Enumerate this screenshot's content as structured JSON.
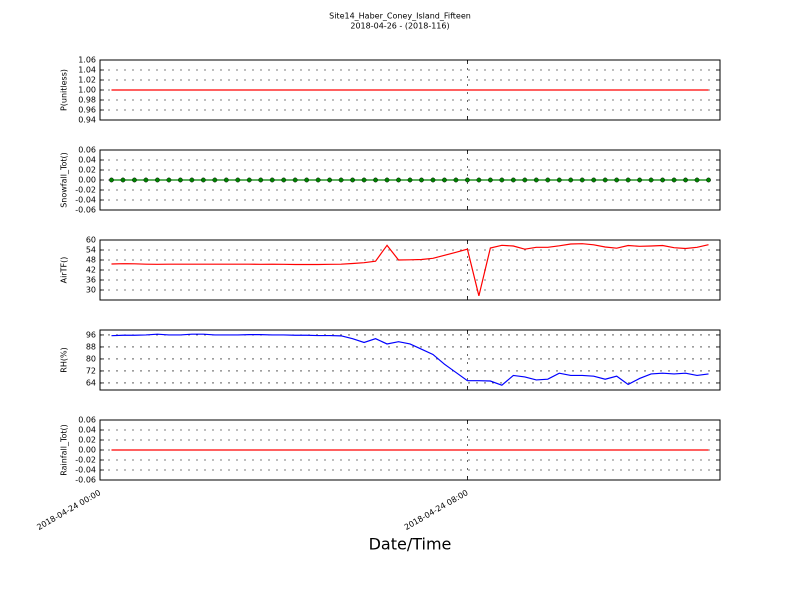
{
  "title": "Site14_Haber_Coney_Island_Fifteen",
  "subtitle": "2018-04-26 - (2018-116)",
  "xlabel": "Date/Time",
  "chart_data": [
    {
      "type": "line",
      "ylabel": "P(unitless)",
      "color": "#ff0000",
      "marker": false,
      "grid": true,
      "x": [
        "2018-04-24 00:15",
        "2018-04-24 00:30",
        "2018-04-24 00:45",
        "2018-04-24 01:00",
        "2018-04-24 01:15",
        "2018-04-24 01:30",
        "2018-04-24 01:45",
        "2018-04-24 02:00",
        "2018-04-24 02:15",
        "2018-04-24 02:30",
        "2018-04-24 02:45",
        "2018-04-24 03:00",
        "2018-04-24 03:15",
        "2018-04-24 03:30",
        "2018-04-24 03:45",
        "2018-04-24 04:00",
        "2018-04-24 04:15",
        "2018-04-24 04:30",
        "2018-04-24 04:45",
        "2018-04-24 05:00",
        "2018-04-24 05:15",
        "2018-04-24 05:30",
        "2018-04-24 05:45",
        "2018-04-24 06:00",
        "2018-04-24 06:15",
        "2018-04-24 06:30",
        "2018-04-24 06:45",
        "2018-04-24 07:00",
        "2018-04-24 07:15",
        "2018-04-24 07:30",
        "2018-04-24 07:45",
        "2018-04-24 08:00",
        "2018-04-24 08:15",
        "2018-04-24 08:30",
        "2018-04-24 08:45",
        "2018-04-24 09:00",
        "2018-04-24 09:15",
        "2018-04-24 09:30",
        "2018-04-24 09:45",
        "2018-04-24 10:00",
        "2018-04-24 10:15",
        "2018-04-24 10:30",
        "2018-04-24 10:45",
        "2018-04-24 11:00",
        "2018-04-24 11:15",
        "2018-04-24 11:30",
        "2018-04-24 11:45",
        "2018-04-24 12:00",
        "2018-04-24 12:15",
        "2018-04-24 12:30",
        "2018-04-24 12:45",
        "2018-04-24 13:00",
        "2018-04-24 13:15"
      ],
      "values": [
        1,
        1,
        1,
        1,
        1,
        1,
        1,
        1,
        1,
        1,
        1,
        1,
        1,
        1,
        1,
        1,
        1,
        1,
        1,
        1,
        1,
        1,
        1,
        1,
        1,
        1,
        1,
        1,
        1,
        1,
        1,
        1,
        1,
        1,
        1,
        1,
        1,
        1,
        1,
        1,
        1,
        1,
        1,
        1,
        1,
        1,
        1,
        1,
        1,
        1,
        1,
        1,
        1
      ],
      "xlim": [
        "2018-04-24 00:00",
        "2018-04-24 13:30"
      ],
      "ylim": [
        0.94,
        1.06
      ],
      "yticks": [
        0.94,
        0.96,
        0.98,
        {
          "value": 1,
          "label": "1.00"
        },
        1.02,
        1.04,
        1.06
      ]
    },
    {
      "type": "line",
      "ylabel": "Snowfall_Tot()",
      "color": "#008000",
      "marker": true,
      "grid": true,
      "x": [
        "2018-04-24 00:15",
        "2018-04-24 00:30",
        "2018-04-24 00:45",
        "2018-04-24 01:00",
        "2018-04-24 01:15",
        "2018-04-24 01:30",
        "2018-04-24 01:45",
        "2018-04-24 02:00",
        "2018-04-24 02:15",
        "2018-04-24 02:30",
        "2018-04-24 02:45",
        "2018-04-24 03:00",
        "2018-04-24 03:15",
        "2018-04-24 03:30",
        "2018-04-24 03:45",
        "2018-04-24 04:00",
        "2018-04-24 04:15",
        "2018-04-24 04:30",
        "2018-04-24 04:45",
        "2018-04-24 05:00",
        "2018-04-24 05:15",
        "2018-04-24 05:30",
        "2018-04-24 05:45",
        "2018-04-24 06:00",
        "2018-04-24 06:15",
        "2018-04-24 06:30",
        "2018-04-24 06:45",
        "2018-04-24 07:00",
        "2018-04-24 07:15",
        "2018-04-24 07:30",
        "2018-04-24 07:45",
        "2018-04-24 08:00",
        "2018-04-24 08:15",
        "2018-04-24 08:30",
        "2018-04-24 08:45",
        "2018-04-24 09:00",
        "2018-04-24 09:15",
        "2018-04-24 09:30",
        "2018-04-24 09:45",
        "2018-04-24 10:00",
        "2018-04-24 10:15",
        "2018-04-24 10:30",
        "2018-04-24 10:45",
        "2018-04-24 11:00",
        "2018-04-24 11:15",
        "2018-04-24 11:30",
        "2018-04-24 11:45",
        "2018-04-24 12:00",
        "2018-04-24 12:15",
        "2018-04-24 12:30",
        "2018-04-24 12:45",
        "2018-04-24 13:00",
        "2018-04-24 13:15"
      ],
      "values": [
        0,
        0,
        0,
        0,
        0,
        0,
        0,
        0,
        0,
        0,
        0,
        0,
        0,
        0,
        0,
        0,
        0,
        0,
        0,
        0,
        0,
        0,
        0,
        0,
        0,
        0,
        0,
        0,
        0,
        0,
        0,
        0,
        0,
        0,
        0,
        0,
        0,
        0,
        0,
        0,
        0,
        0,
        0,
        0,
        0,
        0,
        0,
        0,
        0,
        0,
        0,
        0,
        0
      ],
      "xlim": [
        "2018-04-24 00:00",
        "2018-04-24 13:30"
      ],
      "ylim": [
        -0.06,
        0.06
      ],
      "yticks": [
        -0.06,
        -0.04,
        -0.02,
        {
          "value": 0,
          "label": "0.00"
        },
        0.02,
        0.04,
        0.06
      ]
    },
    {
      "type": "line",
      "ylabel": "AirTF()",
      "color": "#ff0000",
      "marker": false,
      "grid": true,
      "x": [
        "2018-04-24 00:15",
        "2018-04-24 00:30",
        "2018-04-24 00:45",
        "2018-04-24 01:00",
        "2018-04-24 01:15",
        "2018-04-24 01:30",
        "2018-04-24 01:45",
        "2018-04-24 02:00",
        "2018-04-24 02:15",
        "2018-04-24 02:30",
        "2018-04-24 02:45",
        "2018-04-24 03:00",
        "2018-04-24 03:15",
        "2018-04-24 03:30",
        "2018-04-24 03:45",
        "2018-04-24 04:00",
        "2018-04-24 04:15",
        "2018-04-24 04:30",
        "2018-04-24 04:45",
        "2018-04-24 05:00",
        "2018-04-24 05:15",
        "2018-04-24 05:30",
        "2018-04-24 05:45",
        "2018-04-24 06:00",
        "2018-04-24 06:15",
        "2018-04-24 06:30",
        "2018-04-24 06:45",
        "2018-04-24 07:00",
        "2018-04-24 07:15",
        "2018-04-24 07:30",
        "2018-04-24 07:45",
        "2018-04-24 08:00",
        "2018-04-24 08:15",
        "2018-04-24 08:30",
        "2018-04-24 08:45",
        "2018-04-24 09:00",
        "2018-04-24 09:15",
        "2018-04-24 09:30",
        "2018-04-24 09:45",
        "2018-04-24 10:00",
        "2018-04-24 10:15",
        "2018-04-24 10:30",
        "2018-04-24 10:45",
        "2018-04-24 11:00",
        "2018-04-24 11:15",
        "2018-04-24 11:30",
        "2018-04-24 11:45",
        "2018-04-24 12:00",
        "2018-04-24 12:15",
        "2018-04-24 12:30",
        "2018-04-24 12:45",
        "2018-04-24 13:00",
        "2018-04-24 13:15"
      ],
      "values": [
        45.6,
        45.8,
        45.7,
        45.5,
        45.4,
        45.5,
        45.5,
        45.5,
        45.5,
        45.5,
        45.5,
        45.5,
        45.5,
        45.4,
        45.5,
        45.4,
        45.3,
        45.3,
        45.3,
        45.4,
        45.5,
        45.9,
        46.4,
        47.3,
        56.8,
        48.0,
        48.1,
        48.3,
        49.0,
        50.8,
        52.6,
        54.5,
        26.5,
        55.2,
        56.8,
        56.4,
        54.5,
        55.6,
        55.6,
        56.5,
        57.6,
        57.8,
        57.1,
        55.8,
        55.1,
        56.7,
        56.2,
        56.4,
        56.7,
        55.4,
        54.9,
        55.6,
        57.2
      ],
      "xlim": [
        "2018-04-24 00:00",
        "2018-04-24 13:30"
      ],
      "ylim": [
        24,
        60
      ],
      "yticks": [
        30,
        36,
        42,
        48,
        54,
        60
      ]
    },
    {
      "type": "line",
      "ylabel": "RH(%)",
      "color": "#0000ff",
      "marker": false,
      "grid": true,
      "x": [
        "2018-04-24 00:15",
        "2018-04-24 00:30",
        "2018-04-24 00:45",
        "2018-04-24 01:00",
        "2018-04-24 01:15",
        "2018-04-24 01:30",
        "2018-04-24 01:45",
        "2018-04-24 02:00",
        "2018-04-24 02:15",
        "2018-04-24 02:30",
        "2018-04-24 02:45",
        "2018-04-24 03:00",
        "2018-04-24 03:15",
        "2018-04-24 03:30",
        "2018-04-24 03:45",
        "2018-04-24 04:00",
        "2018-04-24 04:15",
        "2018-04-24 04:30",
        "2018-04-24 04:45",
        "2018-04-24 05:00",
        "2018-04-24 05:15",
        "2018-04-24 05:30",
        "2018-04-24 05:45",
        "2018-04-24 06:00",
        "2018-04-24 06:15",
        "2018-04-24 06:30",
        "2018-04-24 06:45",
        "2018-04-24 07:00",
        "2018-04-24 07:15",
        "2018-04-24 07:30",
        "2018-04-24 07:45",
        "2018-04-24 08:00",
        "2018-04-24 08:15",
        "2018-04-24 08:30",
        "2018-04-24 08:45",
        "2018-04-24 09:00",
        "2018-04-24 09:15",
        "2018-04-24 09:30",
        "2018-04-24 09:45",
        "2018-04-24 10:00",
        "2018-04-24 10:15",
        "2018-04-24 10:30",
        "2018-04-24 10:45",
        "2018-04-24 11:00",
        "2018-04-24 11:15",
        "2018-04-24 11:30",
        "2018-04-24 11:45",
        "2018-04-24 12:00",
        "2018-04-24 12:15",
        "2018-04-24 12:30",
        "2018-04-24 12:45",
        "2018-04-24 13:00",
        "2018-04-24 13:15"
      ],
      "values": [
        95.5,
        95.8,
        95.8,
        96.0,
        96.5,
        96.0,
        96.0,
        96.5,
        96.5,
        96.0,
        96.0,
        96.0,
        96.2,
        96.2,
        96.0,
        96.0,
        95.8,
        95.8,
        95.6,
        95.6,
        95.4,
        93.5,
        91.0,
        93.5,
        90.0,
        91.5,
        90.0,
        86.5,
        83.0,
        76.5,
        71.0,
        65.5,
        65.5,
        65.3,
        62.5,
        69.0,
        68.0,
        66.0,
        66.5,
        70.5,
        69.0,
        69.0,
        68.5,
        66.5,
        68.5,
        63.0,
        67.0,
        70.0,
        70.5,
        70.0,
        70.5,
        69.0,
        70.0
      ],
      "xlim": [
        "2018-04-24 00:00",
        "2018-04-24 13:30"
      ],
      "ylim": [
        59.3,
        99.3
      ],
      "yticks": [
        64,
        72,
        80,
        88,
        96
      ]
    },
    {
      "type": "line",
      "ylabel": "Rainfall_Tot()",
      "color": "#ff0000",
      "marker": false,
      "grid": true,
      "x": [
        "2018-04-24 00:15",
        "2018-04-24 00:30",
        "2018-04-24 00:45",
        "2018-04-24 01:00",
        "2018-04-24 01:15",
        "2018-04-24 01:30",
        "2018-04-24 01:45",
        "2018-04-24 02:00",
        "2018-04-24 02:15",
        "2018-04-24 02:30",
        "2018-04-24 02:45",
        "2018-04-24 03:00",
        "2018-04-24 03:15",
        "2018-04-24 03:30",
        "2018-04-24 03:45",
        "2018-04-24 04:00",
        "2018-04-24 04:15",
        "2018-04-24 04:30",
        "2018-04-24 04:45",
        "2018-04-24 05:00",
        "2018-04-24 05:15",
        "2018-04-24 05:30",
        "2018-04-24 05:45",
        "2018-04-24 06:00",
        "2018-04-24 06:15",
        "2018-04-24 06:30",
        "2018-04-24 06:45",
        "2018-04-24 07:00",
        "2018-04-24 07:15",
        "2018-04-24 07:30",
        "2018-04-24 07:45",
        "2018-04-24 08:00",
        "2018-04-24 08:15",
        "2018-04-24 08:30",
        "2018-04-24 08:45",
        "2018-04-24 09:00",
        "2018-04-24 09:15",
        "2018-04-24 09:30",
        "2018-04-24 09:45",
        "2018-04-24 10:00",
        "2018-04-24 10:15",
        "2018-04-24 10:30",
        "2018-04-24 10:45",
        "2018-04-24 11:00",
        "2018-04-24 11:15",
        "2018-04-24 11:30",
        "2018-04-24 11:45",
        "2018-04-24 12:00",
        "2018-04-24 12:15",
        "2018-04-24 12:30",
        "2018-04-24 12:45",
        "2018-04-24 13:00",
        "2018-04-24 13:15"
      ],
      "values": [
        0,
        0,
        0,
        0,
        0,
        0,
        0,
        0,
        0,
        0,
        0,
        0,
        0,
        0,
        0,
        0,
        0,
        0,
        0,
        0,
        0,
        0,
        0,
        0,
        0,
        0,
        0,
        0,
        0,
        0,
        0,
        0,
        0,
        0,
        0,
        0,
        0,
        0,
        0,
        0,
        0,
        0,
        0,
        0,
        0,
        0,
        0,
        0,
        0,
        0,
        0,
        0,
        0
      ],
      "xlim": [
        "2018-04-24 00:00",
        "2018-04-24 13:30"
      ],
      "ylim": [
        -0.06,
        0.06
      ],
      "yticks": [
        -0.06,
        -0.04,
        -0.02,
        {
          "value": 0,
          "label": "0.00"
        },
        0.02,
        0.04,
        0.06
      ],
      "xticks": [
        "2018-04-24 00:00",
        "2018-04-24 08:00"
      ]
    }
  ]
}
